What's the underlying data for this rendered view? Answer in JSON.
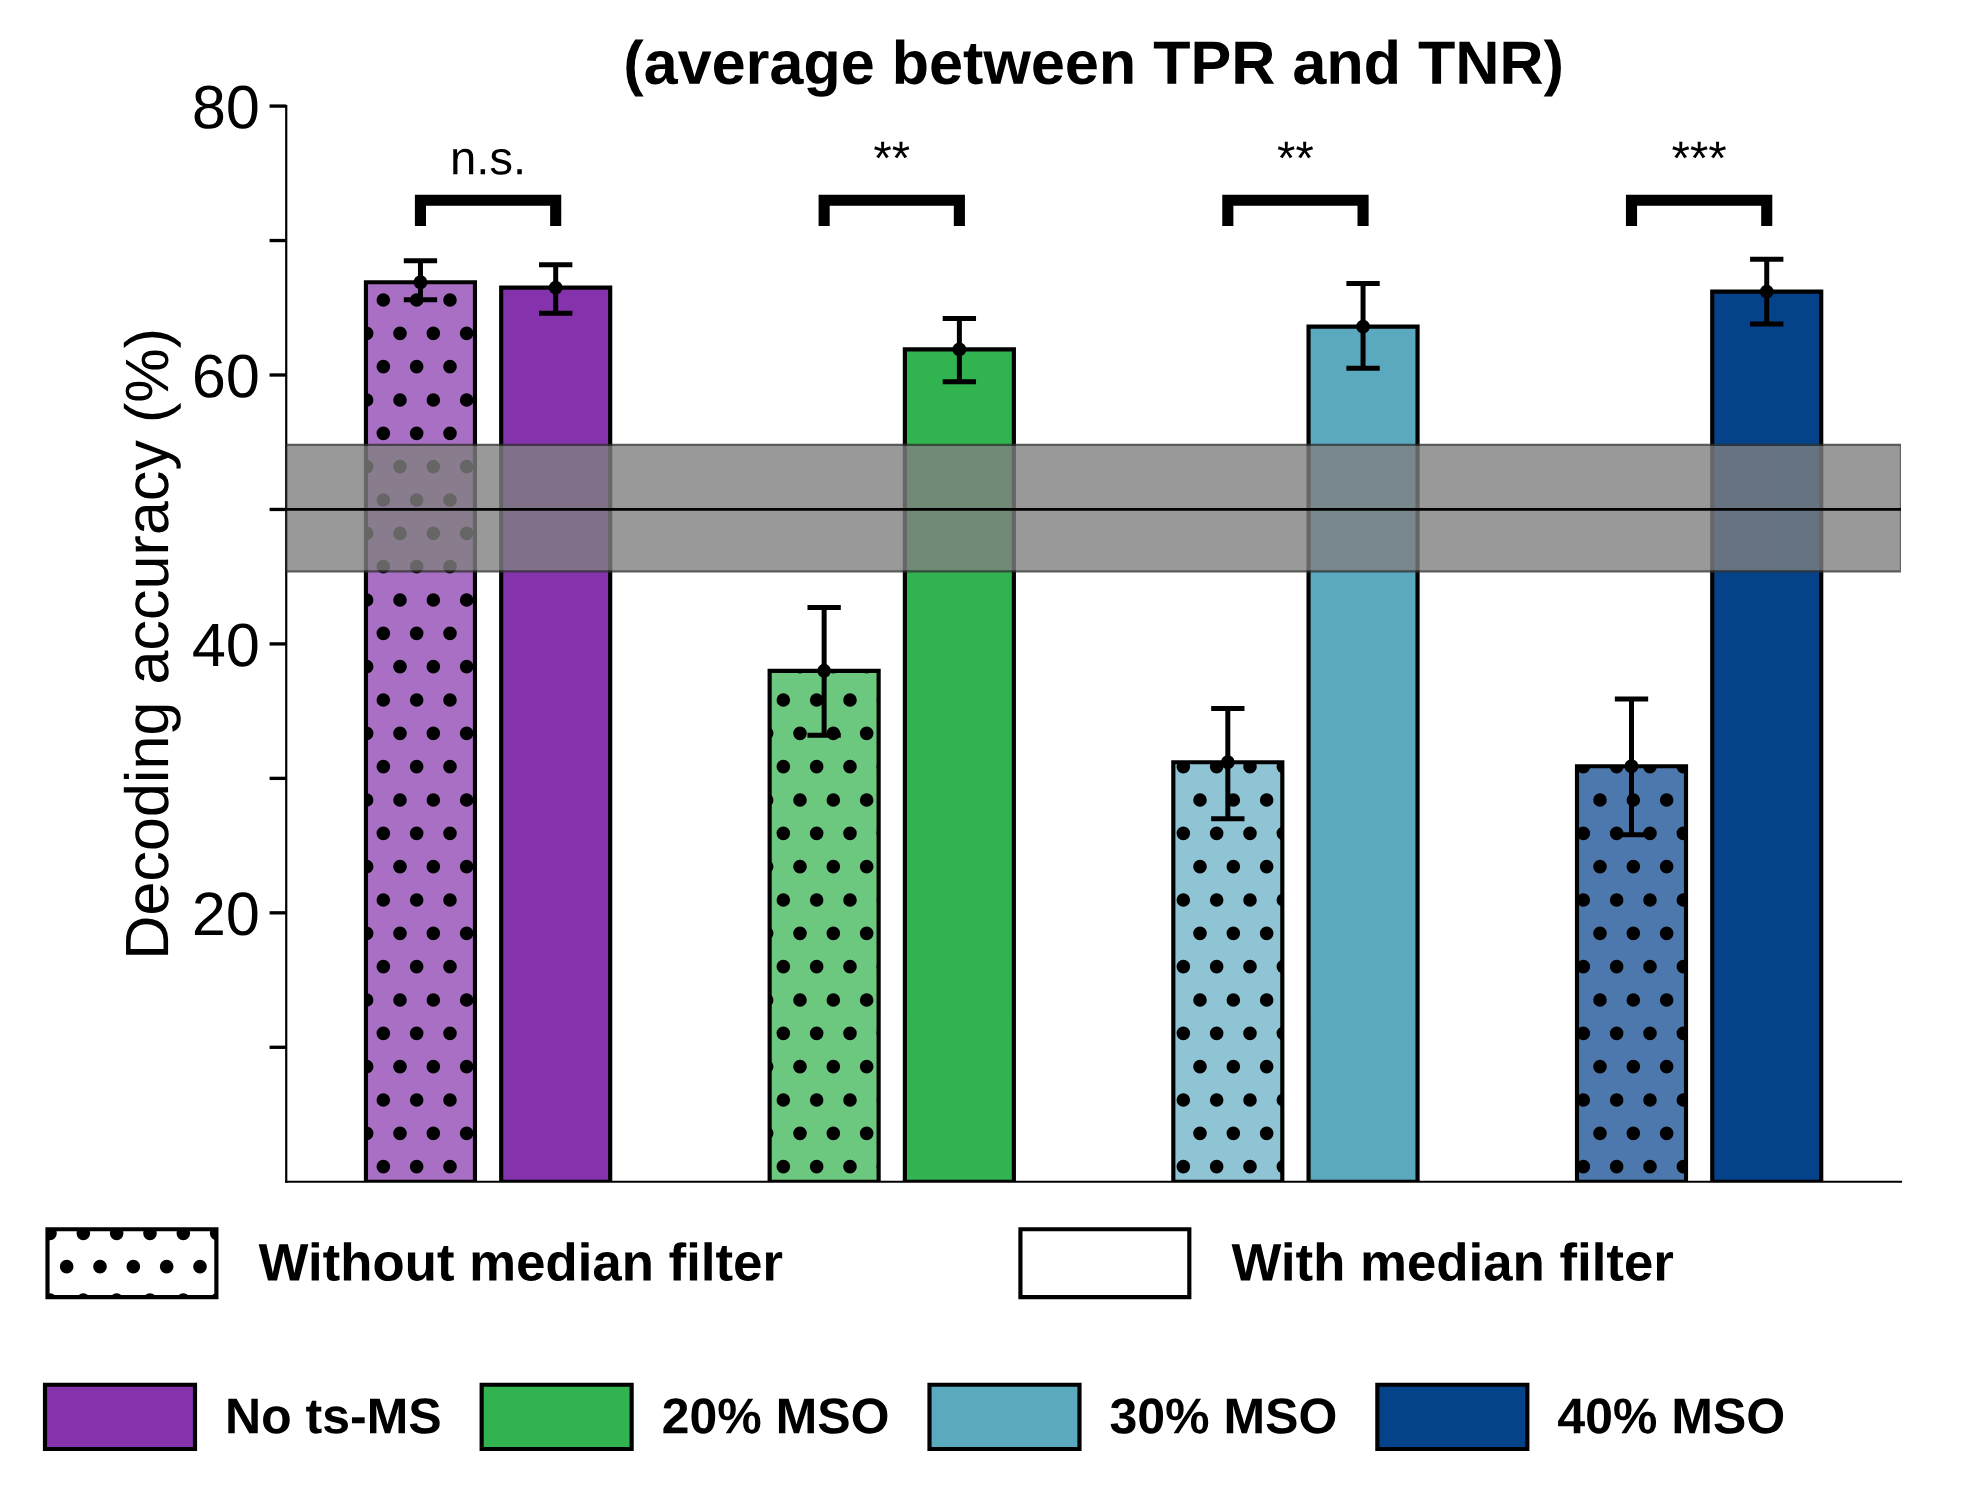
{
  "chart_data": {
    "type": "bar",
    "title": "(average between TPR and TNR)",
    "ylabel": "Decoding accuracy (%)",
    "categories": [
      "No ts-MS",
      "20% MSO",
      "30% MSO",
      "40% MSO"
    ],
    "series": [
      {
        "name": "Without median filter",
        "colors": [
          "#a86fc4",
          "#6cc77f",
          "#8ec4d4",
          "#4d78ad"
        ],
        "values": [
          66.9,
          38.0,
          31.2,
          30.9
        ],
        "errors": [
          [
            65.6,
            68.5
          ],
          [
            33.2,
            42.7
          ],
          [
            27.0,
            35.2
          ],
          [
            25.8,
            35.9
          ]
        ]
      },
      {
        "name": "With median filter",
        "colors": [
          "#8533ad",
          "#31b350",
          "#5ba9be",
          "#044289"
        ],
        "values": [
          66.5,
          61.9,
          63.6,
          66.2
        ],
        "errors": [
          [
            64.6,
            68.2
          ],
          [
            59.5,
            64.2
          ],
          [
            60.5,
            66.8
          ],
          [
            63.8,
            68.6
          ]
        ]
      }
    ],
    "ylim": [
      0,
      80
    ],
    "yticks": [
      {
        "value": 10,
        "label": null
      },
      20,
      {
        "value": 30,
        "label": null
      },
      40,
      {
        "value": 50,
        "label": null
      },
      60,
      {
        "value": 70,
        "label": null
      },
      80
    ],
    "ref_lines": [
      {
        "axis": "y",
        "value": 50,
        "color": "#000000"
      }
    ],
    "bands": [
      {
        "axis": "y",
        "from": 45.4,
        "to": 54.8,
        "color": "#808080"
      }
    ],
    "annotations": [
      "n.s.",
      "**",
      "**",
      "***"
    ],
    "tick_labels": "y",
    "grid": false,
    "legend": "bottom"
  }
}
